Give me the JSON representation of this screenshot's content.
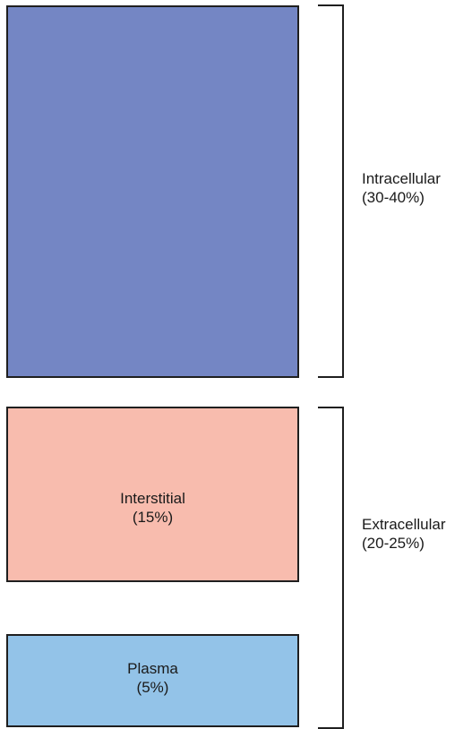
{
  "compartments": {
    "intracellular": {
      "name": "Intracellular",
      "percent": "(30-40%)",
      "color": "#7486c4"
    },
    "extracellular": {
      "name": "Extracellular",
      "percent": "(20-25%)"
    },
    "interstitial": {
      "name": "Interstitial",
      "percent": "(15%)",
      "color": "#f8bcae"
    },
    "plasma": {
      "name": "Plasma",
      "percent": "(5%)",
      "color": "#93c3e8"
    }
  }
}
